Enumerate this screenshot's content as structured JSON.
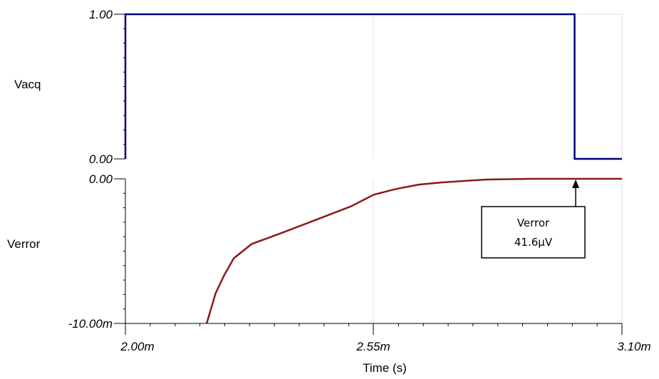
{
  "chart_data": [
    {
      "type": "line",
      "ylabel": "Vacq",
      "ylabel_color": "#000000",
      "line_color": "#000080",
      "xlim": [
        0.002,
        0.0031
      ],
      "ylim": [
        0,
        1
      ],
      "y_tick_labels": [
        "1.00",
        "0.00"
      ],
      "series": [
        {
          "x": [
            0.002,
            0.002,
            0.002995,
            0.002995,
            0.0031
          ],
          "y": [
            0,
            1,
            1,
            0,
            0
          ]
        }
      ]
    },
    {
      "type": "line",
      "ylabel": "Verror",
      "ylabel_color": "#8b0000",
      "line_color": "#8b1a1a",
      "xlim": [
        0.002,
        0.0031
      ],
      "ylim": [
        -0.01,
        0
      ],
      "y_tick_labels": [
        "0.00",
        "-10.00m"
      ],
      "series": [
        {
          "x": [
            0.00218,
            0.0022,
            0.00222,
            0.00224,
            0.00228,
            0.00235,
            0.0024,
            0.00245,
            0.0025,
            0.00255,
            0.0026,
            0.00265,
            0.0027,
            0.00275,
            0.0028,
            0.0029,
            0.003,
            0.0031
          ],
          "y": [
            -0.01,
            -0.0079,
            -0.0066,
            -0.0055,
            -0.0045,
            -0.0037,
            -0.0031,
            -0.0025,
            -0.0019,
            -0.0011,
            -0.0007,
            -0.0004,
            -0.00025,
            -0.00015,
            -5e-05,
            0.0,
            0.0,
            0.0
          ]
        }
      ],
      "annotation": {
        "label": "Verror",
        "value": "41.6µV",
        "x": 0.0029975,
        "y": 0.0
      }
    }
  ],
  "x_axis": {
    "label": "Time (s)",
    "ticks": [
      0.002,
      0.00255,
      0.0031
    ],
    "tick_labels": [
      "2.00m",
      "2.55m",
      "3.10m"
    ]
  }
}
